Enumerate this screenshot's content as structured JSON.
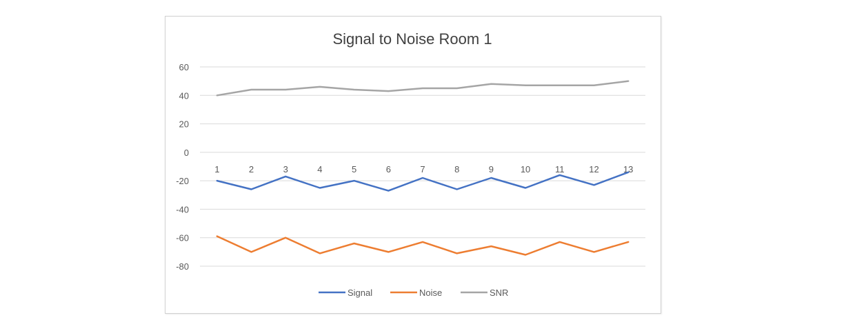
{
  "chart_data": {
    "type": "line",
    "title": "Signal to Noise Room 1",
    "xlabel": "",
    "ylabel": "",
    "categories": [
      "1",
      "2",
      "3",
      "4",
      "5",
      "6",
      "7",
      "8",
      "9",
      "10",
      "11",
      "12",
      "13"
    ],
    "y_ticks": [
      "60",
      "40",
      "20",
      "0",
      "-20",
      "-40",
      "-60",
      "-80"
    ],
    "ylim": [
      -80,
      60
    ],
    "grid": true,
    "legend_position": "bottom",
    "series": [
      {
        "name": "Signal",
        "color": "#4472c4",
        "values": [
          -20,
          -26,
          -17,
          -25,
          -20,
          -27,
          -18,
          -26,
          -18,
          -25,
          -16,
          -23,
          -14
        ]
      },
      {
        "name": "Noise",
        "color": "#ed7d31",
        "values": [
          -59,
          -70,
          -60,
          -71,
          -64,
          -70,
          -63,
          -71,
          -66,
          -72,
          -63,
          -70,
          -63
        ]
      },
      {
        "name": "SNR",
        "color": "#a5a5a5",
        "values": [
          40,
          44,
          44,
          46,
          44,
          43,
          45,
          45,
          48,
          47,
          47,
          47,
          50
        ]
      }
    ]
  }
}
